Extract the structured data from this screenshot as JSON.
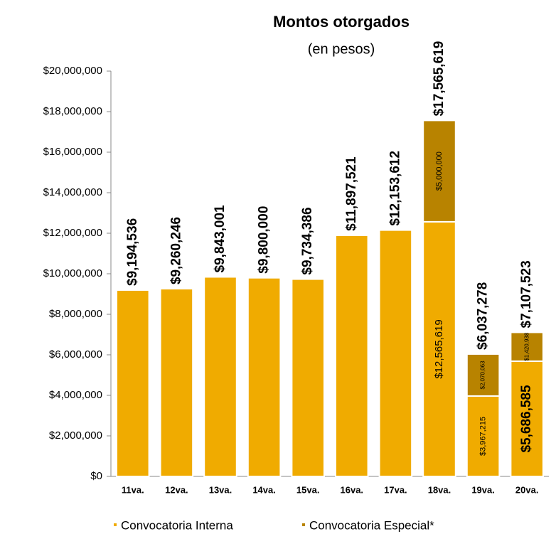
{
  "chart_data": {
    "type": "stacked_bar",
    "title": "Montos otorgados",
    "subtitle": "(en pesos)",
    "categories": [
      "11va.",
      "12va.",
      "13va.",
      "14va.",
      "15va.",
      "16va.",
      "17va.",
      "18va.",
      "19va.",
      "20va."
    ],
    "series": [
      {
        "name": "Convocatoria Interna",
        "color": "#f0ab00",
        "values": [
          9194536,
          9260246,
          9843001,
          9800000,
          9734386,
          11897521,
          12153612,
          12565619,
          3967215,
          5686585
        ],
        "value_labels": [
          null,
          null,
          null,
          null,
          null,
          null,
          null,
          "$12,565,619",
          "$3,967,215",
          "$5,686,585"
        ]
      },
      {
        "name": "Convocatoria Especial*",
        "color": "#b88300",
        "values": [
          null,
          null,
          null,
          null,
          null,
          null,
          null,
          5000000,
          2070063,
          1420938
        ],
        "value_labels": [
          null,
          null,
          null,
          null,
          null,
          null,
          null,
          "$5,000,000",
          "$2,070,063",
          "$1,420,938"
        ]
      }
    ],
    "totals": [
      9194536,
      9260246,
      9843001,
      9800000,
      9734386,
      11897521,
      12153612,
      17565619,
      6037278,
      7107523
    ],
    "total_labels": [
      "$9,194,536",
      "$9,260,246",
      "$9,843,001",
      "$9,800,000",
      "$9,734,386",
      "$11,897,521",
      "$12,153,612",
      "$17,565,619",
      "$6,037,278",
      "$7,107,523"
    ],
    "ylim": [
      0,
      20000000
    ],
    "yticks": [
      {
        "value": 0,
        "label": "$0"
      },
      {
        "value": 2000000,
        "label": "$2,000,000"
      },
      {
        "value": 4000000,
        "label": "$4,000,000"
      },
      {
        "value": 6000000,
        "label": "$6,000,000"
      },
      {
        "value": 8000000,
        "label": "$8,000,000"
      },
      {
        "value": 10000000,
        "label": "$10,000,000"
      },
      {
        "value": 12000000,
        "label": "$12,000,000"
      },
      {
        "value": 14000000,
        "label": "$14,000,000"
      },
      {
        "value": 16000000,
        "label": "$16,000,000"
      },
      {
        "value": 18000000,
        "label": "$18,000,000"
      },
      {
        "value": 20000000,
        "label": "$20,000,000"
      }
    ],
    "legend": "bottom"
  }
}
